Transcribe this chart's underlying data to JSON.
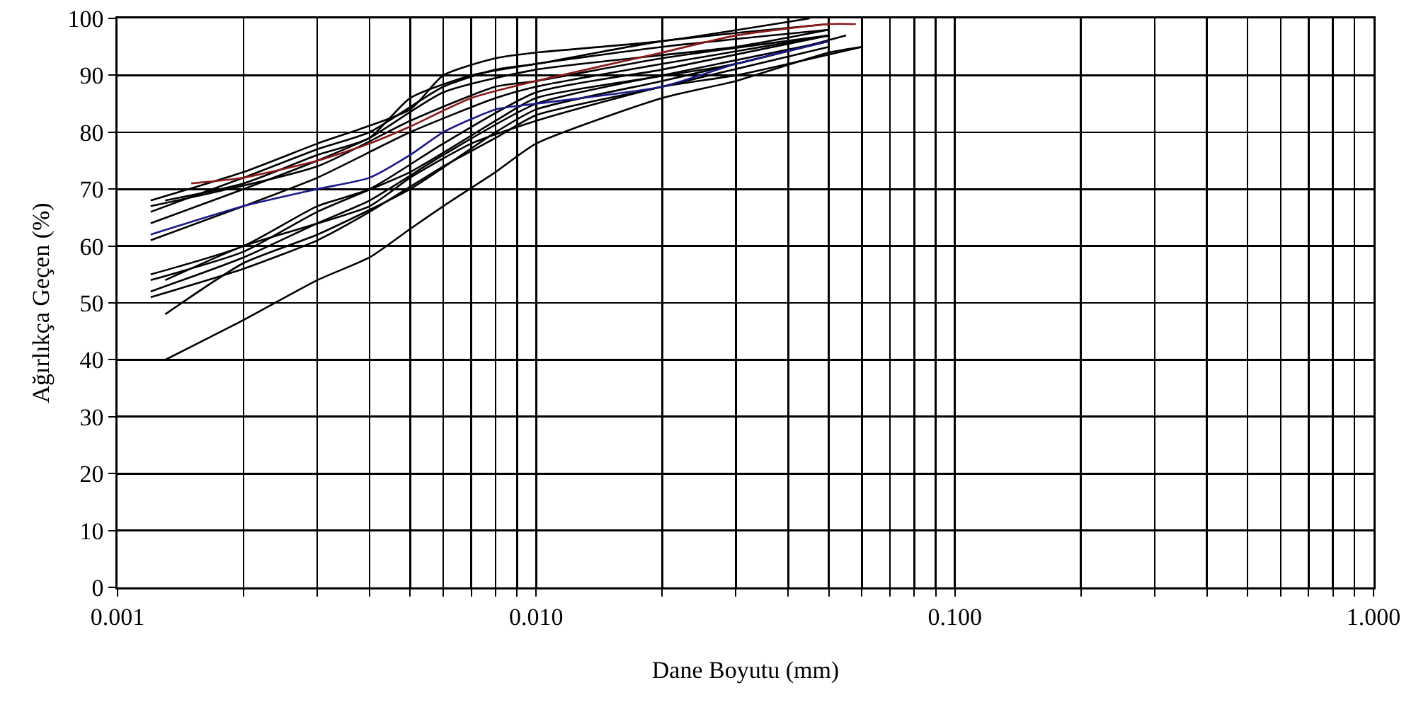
{
  "chart_data": {
    "type": "line",
    "xlabel": "Dane Boyutu (mm)",
    "ylabel": "Ağırlıkça Geçen (%)",
    "log": "x",
    "grid": true,
    "marker": "none",
    "line_style": "solid",
    "xlim": [
      0.001,
      1
    ],
    "ylim": [
      0,
      100
    ],
    "xticks": [
      {
        "value": 0.001,
        "label": "0.001"
      },
      {
        "value": 0.002,
        "label": null
      },
      {
        "value": 0.003,
        "label": null
      },
      {
        "value": 0.004,
        "label": null
      },
      {
        "value": 0.005,
        "label": null
      },
      {
        "value": 0.006,
        "label": null
      },
      {
        "value": 0.007,
        "label": null
      },
      {
        "value": 0.008,
        "label": null
      },
      {
        "value": 0.009,
        "label": null
      },
      {
        "value": 0.01,
        "label": "0.010"
      },
      {
        "value": 0.02,
        "label": null
      },
      {
        "value": 0.03,
        "label": null
      },
      {
        "value": 0.04,
        "label": null
      },
      {
        "value": 0.05,
        "label": null
      },
      {
        "value": 0.06,
        "label": null
      },
      {
        "value": 0.07,
        "label": null
      },
      {
        "value": 0.08,
        "label": null
      },
      {
        "value": 0.09,
        "label": null
      },
      {
        "value": 0.1,
        "label": "0.100"
      },
      {
        "value": 0.2,
        "label": null
      },
      {
        "value": 0.3,
        "label": null
      },
      {
        "value": 0.4,
        "label": null
      },
      {
        "value": 0.5,
        "label": null
      },
      {
        "value": 0.6,
        "label": null
      },
      {
        "value": 0.7,
        "label": null
      },
      {
        "value": 0.8,
        "label": null
      },
      {
        "value": 0.9,
        "label": null
      },
      {
        "value": 1,
        "label": "1.000"
      }
    ],
    "yticks": [
      0,
      10,
      20,
      30,
      40,
      50,
      60,
      70,
      80,
      90,
      100
    ],
    "series": [
      {
        "color": "#000000",
        "x": [
          0.0013,
          0.002,
          0.003,
          0.004,
          0.005,
          0.006,
          0.008,
          0.01,
          0.02,
          0.03,
          0.05,
          0.06
        ],
        "values": [
          40,
          47,
          54,
          58,
          63,
          67,
          73,
          78,
          86,
          89,
          94,
          95
        ]
      },
      {
        "color": "#000000",
        "x": [
          0.0013,
          0.002,
          0.003,
          0.005,
          0.008,
          0.01,
          0.02,
          0.03,
          0.05
        ],
        "values": [
          48,
          57,
          62,
          70,
          80,
          84,
          89,
          92,
          96
        ]
      },
      {
        "color": "#000000",
        "x": [
          0.0012,
          0.002,
          0.003,
          0.004,
          0.006,
          0.008,
          0.01,
          0.02,
          0.05
        ],
        "values": [
          51,
          56,
          61,
          66,
          74,
          79,
          83,
          88,
          95
        ]
      },
      {
        "color": "#000000",
        "x": [
          0.0012,
          0.002,
          0.003,
          0.004,
          0.006,
          0.01,
          0.02,
          0.05
        ],
        "values": [
          52,
          58,
          64,
          68,
          76,
          85,
          90,
          96
        ]
      },
      {
        "color": "#000000",
        "x": [
          0.0012,
          0.002,
          0.003,
          0.005,
          0.008,
          0.01,
          0.03,
          0.055
        ],
        "values": [
          54,
          59,
          66,
          73,
          82,
          86,
          92,
          97
        ]
      },
      {
        "color": "#000000",
        "x": [
          0.0012,
          0.002,
          0.003,
          0.004,
          0.006,
          0.01,
          0.02,
          0.05
        ],
        "values": [
          55,
          60,
          67,
          70,
          78,
          87,
          91,
          97
        ]
      },
      {
        "color": "#000000",
        "x": [
          0.0013,
          0.002,
          0.004,
          0.005,
          0.007,
          0.01,
          0.02,
          0.03,
          0.06
        ],
        "values": [
          54,
          60,
          67,
          72,
          78,
          82,
          88,
          90,
          95
        ]
      },
      {
        "color": "#000000",
        "x": [
          0.0012,
          0.002,
          0.003,
          0.005,
          0.008,
          0.01,
          0.02,
          0.05
        ],
        "values": [
          61,
          67,
          72,
          80,
          86,
          88,
          92,
          97
        ]
      },
      {
        "color": "#000000",
        "x": [
          0.0012,
          0.002,
          0.003,
          0.004,
          0.006,
          0.01,
          0.03,
          0.05
        ],
        "values": [
          64,
          70,
          75,
          79,
          87,
          91,
          95,
          98
        ]
      },
      {
        "color": "#000000",
        "x": [
          0.0012,
          0.002,
          0.003,
          0.004,
          0.006,
          0.008,
          0.01,
          0.02,
          0.05
        ],
        "values": [
          66,
          72,
          77,
          80,
          88,
          91,
          92,
          96,
          99
        ]
      },
      {
        "color": "#000000",
        "x": [
          0.0012,
          0.002,
          0.003,
          0.005,
          0.006,
          0.008,
          0.01,
          0.02,
          0.045
        ],
        "values": [
          68,
          73,
          78,
          84,
          90,
          93,
          94,
          96,
          100
        ]
      },
      {
        "color": "#000000",
        "x": [
          0.0013,
          0.002,
          0.003,
          0.004,
          0.005,
          0.007,
          0.01,
          0.02,
          0.05
        ],
        "values": [
          68,
          71,
          76,
          79,
          86,
          90,
          92,
          95,
          98
        ]
      },
      {
        "color": "#000000",
        "x": [
          0.0012,
          0.003,
          0.005,
          0.008,
          0.01,
          0.02,
          0.05
        ],
        "values": [
          67,
          74,
          82,
          88,
          89,
          93,
          97
        ]
      },
      {
        "color": "#1a1a8b",
        "x": [
          0.0012,
          0.002,
          0.003,
          0.004,
          0.005,
          0.006,
          0.008,
          0.01,
          0.02,
          0.03,
          0.05
        ],
        "values": [
          62,
          67,
          70,
          72,
          76,
          80,
          84,
          85,
          88,
          92,
          96
        ]
      },
      {
        "color": "#8b1a1a",
        "x": [
          0.0015,
          0.002,
          0.003,
          0.004,
          0.005,
          0.007,
          0.01,
          0.02,
          0.03,
          0.05,
          0.058
        ],
        "values": [
          71,
          72,
          75,
          78,
          81,
          86,
          89,
          94,
          97,
          99,
          99
        ]
      }
    ]
  }
}
